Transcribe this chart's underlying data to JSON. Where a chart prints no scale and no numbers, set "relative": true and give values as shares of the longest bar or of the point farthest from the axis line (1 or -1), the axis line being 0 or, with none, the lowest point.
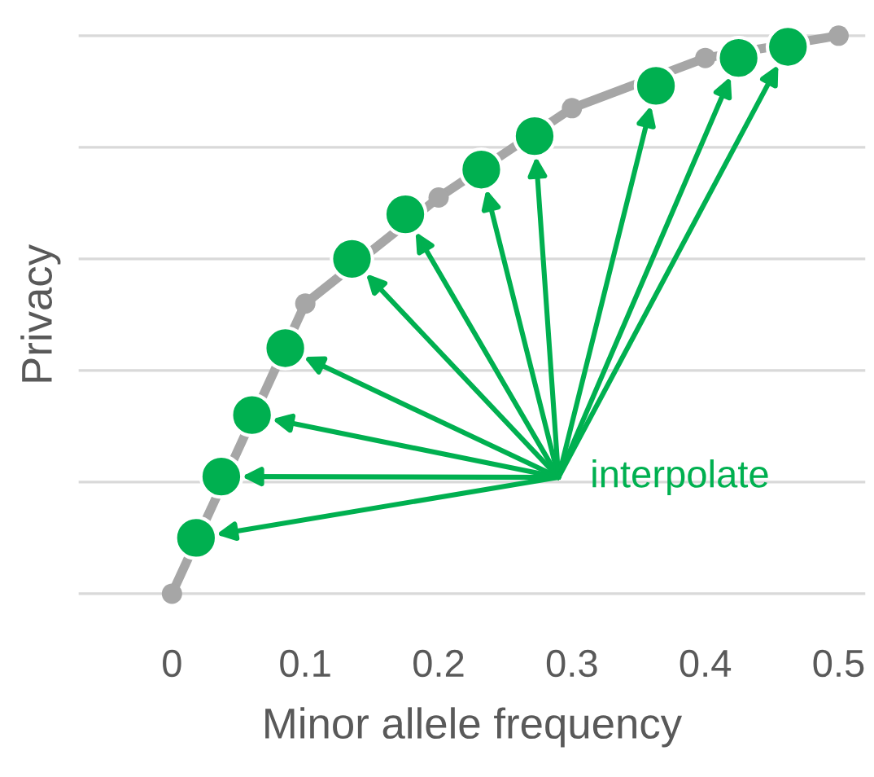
{
  "chart_data": {
    "type": "line",
    "xlabel": "Minor allele frequency",
    "ylabel": "Privacy",
    "relative": true,
    "xlim": [
      -0.07,
      0.52
    ],
    "xticks": [
      0,
      0.1,
      0.2,
      0.3,
      0.4,
      0.5
    ],
    "grid": "y",
    "marker": "circle",
    "line_style": "solid",
    "series": [
      {
        "color": "#a6a6a6",
        "x": [
          0,
          0.1,
          0.2,
          0.3,
          0.4,
          0.5
        ],
        "values": [
          0,
          0.52,
          0.71,
          0.87,
          0.96,
          1.0
        ]
      },
      {
        "type": "scatter",
        "color": "#00b050",
        "x": [
          0.018,
          0.037,
          0.06,
          0.085,
          0.135,
          0.175,
          0.232,
          0.272,
          0.363,
          0.425,
          0.462
        ],
        "values": [
          0.1,
          0.21,
          0.32,
          0.44,
          0.6,
          0.68,
          0.76,
          0.82,
          0.91,
          0.96,
          0.98
        ]
      }
    ],
    "annotations": [
      "interpolate"
    ]
  }
}
